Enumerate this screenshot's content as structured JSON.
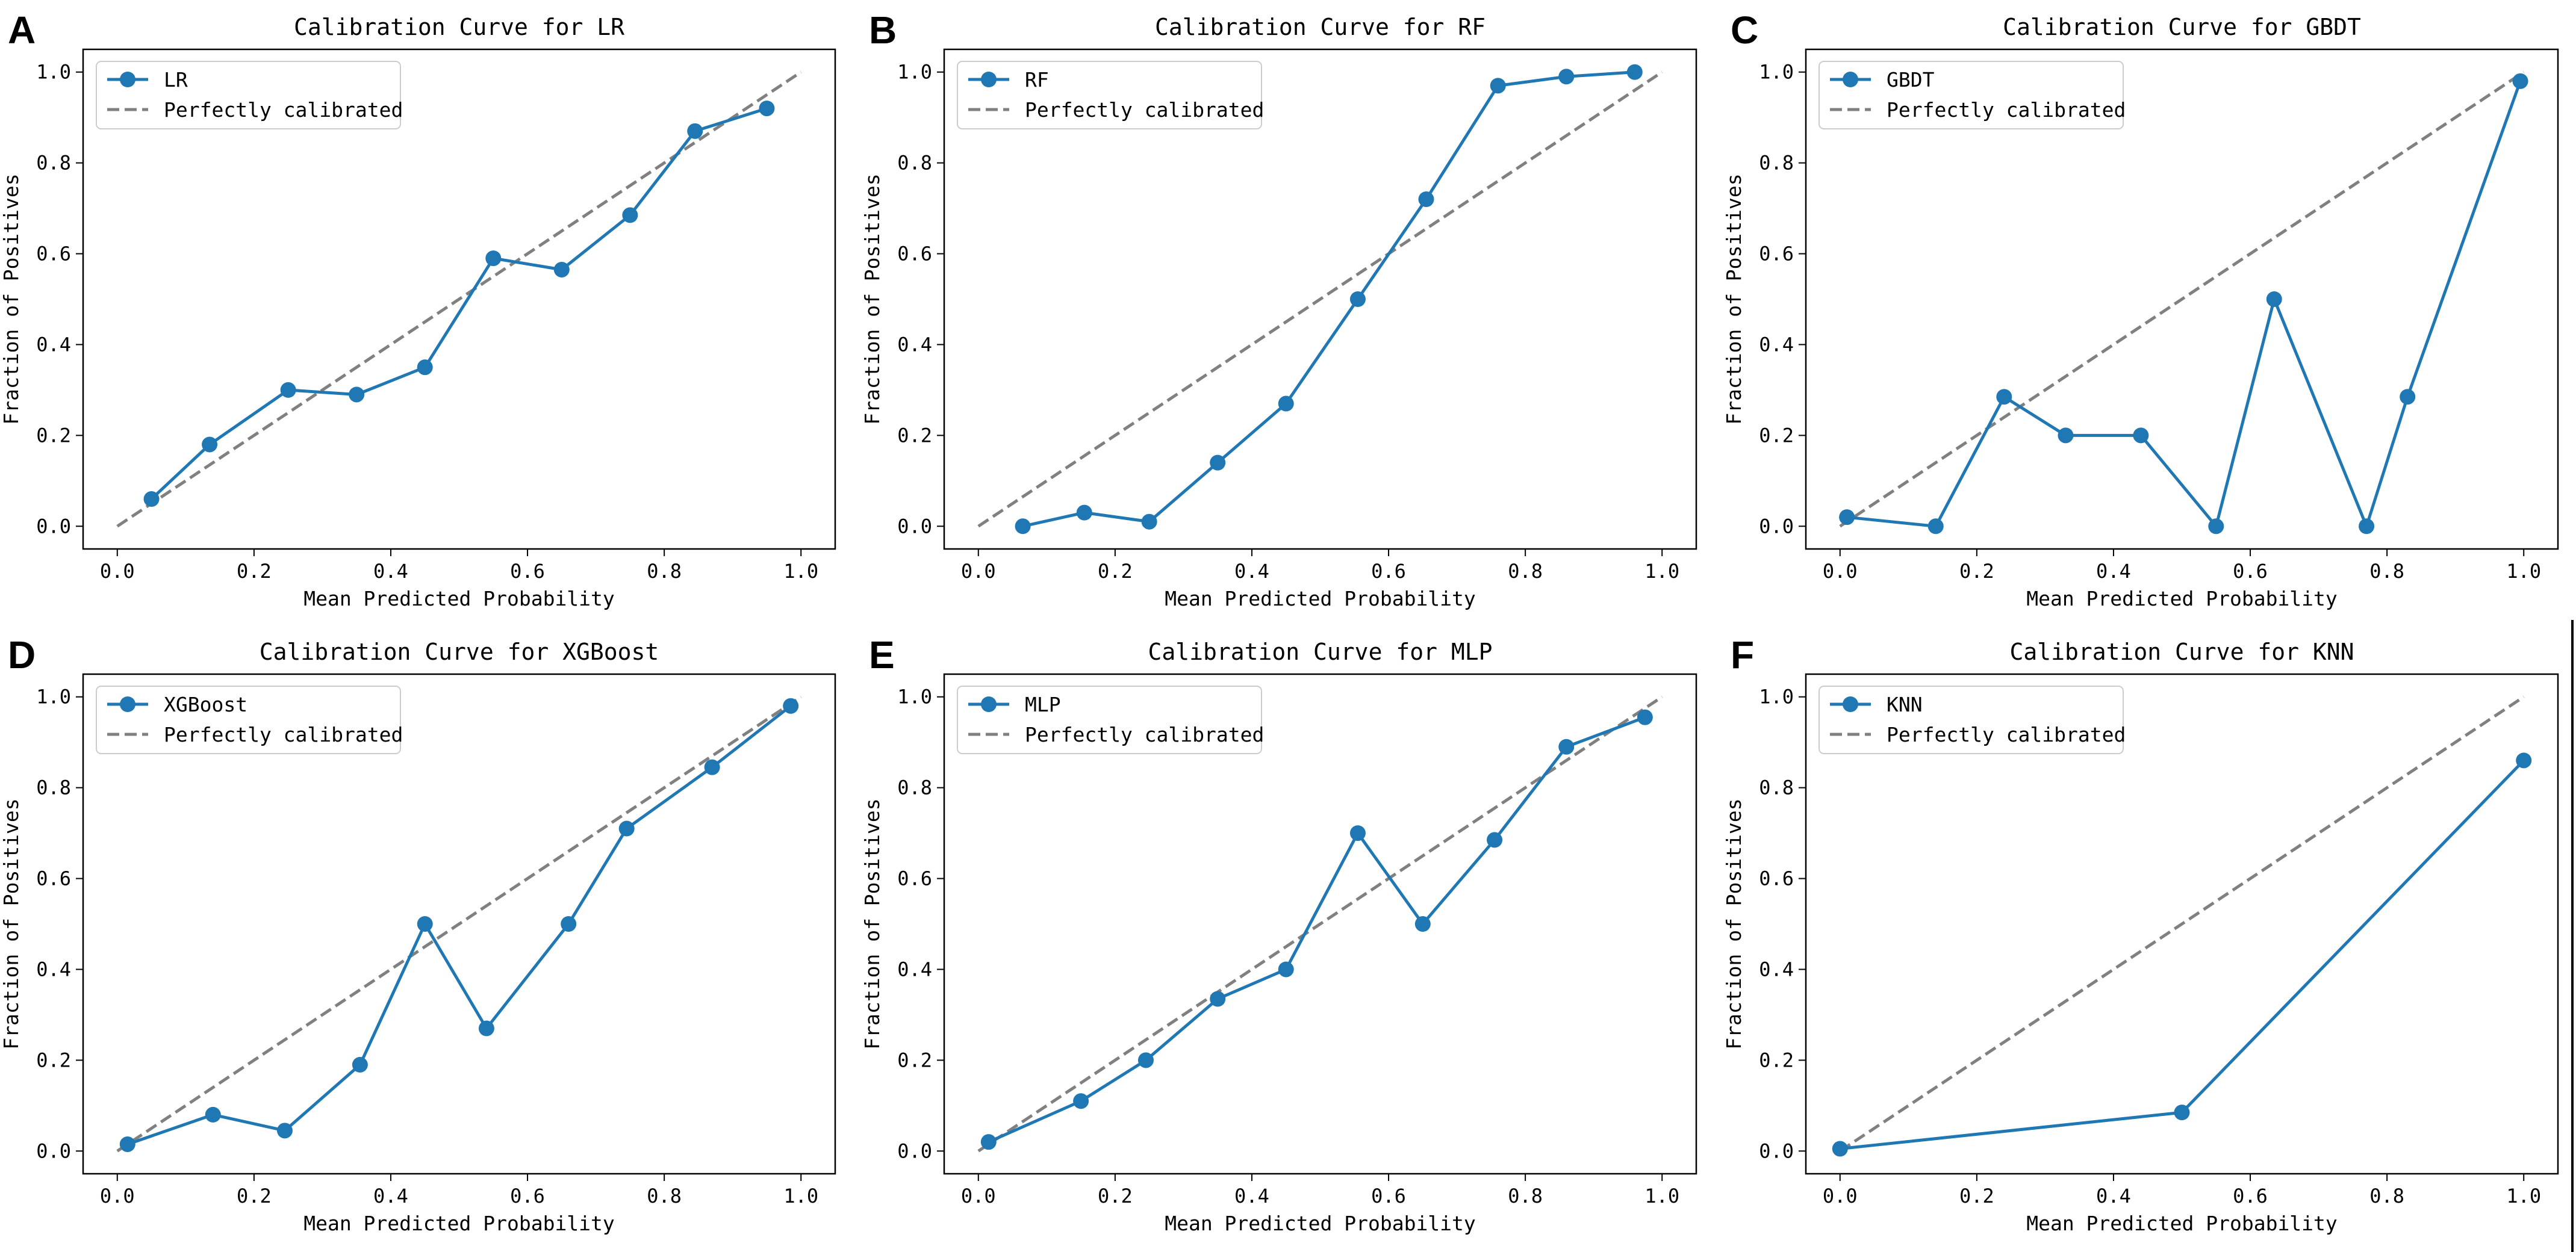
{
  "figure": {
    "colors": {
      "series": "#1f77b4",
      "reference": "#808080",
      "frame": "#000000",
      "legend_border": "#cccccc"
    },
    "reference_label": "Perfectly calibrated",
    "xlabel": "Mean Predicted Probability",
    "ylabel": "Fraction of Positives"
  },
  "chart_data": [
    {
      "letter": "A",
      "type": "line",
      "title": "Calibration Curve for LR",
      "legend_label": "LR",
      "xlim": [
        -0.05,
        1.05
      ],
      "ylim": [
        -0.05,
        1.05
      ],
      "xticks": [
        0.0,
        0.2,
        0.4,
        0.6,
        0.8,
        1.0
      ],
      "yticks": [
        0.0,
        0.2,
        0.4,
        0.6,
        0.8,
        1.0
      ],
      "xtick_labels": [
        "0.0",
        "0.2",
        "0.4",
        "0.6",
        "0.8",
        "1.0"
      ],
      "ytick_labels": [
        "0.0",
        "0.2",
        "0.4",
        "0.6",
        "0.8",
        "1.0"
      ],
      "x": [
        0.05,
        0.135,
        0.25,
        0.35,
        0.45,
        0.55,
        0.65,
        0.75,
        0.845,
        0.95
      ],
      "y": [
        0.06,
        0.18,
        0.3,
        0.29,
        0.35,
        0.59,
        0.565,
        0.685,
        0.87,
        0.92
      ],
      "reference": [
        [
          0,
          0
        ],
        [
          1,
          1
        ]
      ]
    },
    {
      "letter": "B",
      "type": "line",
      "title": "Calibration Curve for RF",
      "legend_label": "RF",
      "xlim": [
        -0.05,
        1.05
      ],
      "ylim": [
        -0.05,
        1.05
      ],
      "xticks": [
        0.0,
        0.2,
        0.4,
        0.6,
        0.8,
        1.0
      ],
      "yticks": [
        0.0,
        0.2,
        0.4,
        0.6,
        0.8,
        1.0
      ],
      "xtick_labels": [
        "0.0",
        "0.2",
        "0.4",
        "0.6",
        "0.8",
        "1.0"
      ],
      "ytick_labels": [
        "0.0",
        "0.2",
        "0.4",
        "0.6",
        "0.8",
        "1.0"
      ],
      "x": [
        0.065,
        0.155,
        0.25,
        0.35,
        0.45,
        0.555,
        0.655,
        0.76,
        0.86,
        0.96
      ],
      "y": [
        0.0,
        0.03,
        0.01,
        0.14,
        0.27,
        0.5,
        0.72,
        0.97,
        0.99,
        1.0
      ],
      "reference": [
        [
          0,
          0
        ],
        [
          1,
          1
        ]
      ]
    },
    {
      "letter": "C",
      "type": "line",
      "title": "Calibration Curve for GBDT",
      "legend_label": "GBDT",
      "xlim": [
        -0.05,
        1.05
      ],
      "ylim": [
        -0.05,
        1.05
      ],
      "xticks": [
        0.0,
        0.2,
        0.4,
        0.6,
        0.8,
        1.0
      ],
      "yticks": [
        0.0,
        0.2,
        0.4,
        0.6,
        0.8,
        1.0
      ],
      "xtick_labels": [
        "0.0",
        "0.2",
        "0.4",
        "0.6",
        "0.8",
        "1.0"
      ],
      "ytick_labels": [
        "0.0",
        "0.2",
        "0.4",
        "0.6",
        "0.8",
        "1.0"
      ],
      "x": [
        0.01,
        0.14,
        0.24,
        0.33,
        0.44,
        0.55,
        0.635,
        0.77,
        0.83,
        0.995
      ],
      "y": [
        0.02,
        0.0,
        0.285,
        0.2,
        0.2,
        0.0,
        0.5,
        0.0,
        0.285,
        0.98
      ],
      "reference": [
        [
          0,
          0
        ],
        [
          1,
          1
        ]
      ]
    },
    {
      "letter": "D",
      "type": "line",
      "title": "Calibration Curve for XGBoost",
      "legend_label": "XGBoost",
      "xlim": [
        -0.05,
        1.05
      ],
      "ylim": [
        -0.05,
        1.05
      ],
      "xticks": [
        0.0,
        0.2,
        0.4,
        0.6,
        0.8,
        1.0
      ],
      "yticks": [
        0.0,
        0.2,
        0.4,
        0.6,
        0.8,
        1.0
      ],
      "xtick_labels": [
        "0.0",
        "0.2",
        "0.4",
        "0.6",
        "0.8",
        "1.0"
      ],
      "ytick_labels": [
        "0.0",
        "0.2",
        "0.4",
        "0.6",
        "0.8",
        "1.0"
      ],
      "x": [
        0.015,
        0.14,
        0.245,
        0.355,
        0.45,
        0.54,
        0.66,
        0.745,
        0.87,
        0.985
      ],
      "y": [
        0.015,
        0.08,
        0.045,
        0.19,
        0.5,
        0.27,
        0.5,
        0.71,
        0.845,
        0.98
      ],
      "reference": [
        [
          0,
          0
        ],
        [
          1,
          1
        ]
      ]
    },
    {
      "letter": "E",
      "type": "line",
      "title": "Calibration Curve for MLP",
      "legend_label": "MLP",
      "xlim": [
        -0.05,
        1.05
      ],
      "ylim": [
        -0.05,
        1.05
      ],
      "xticks": [
        0.0,
        0.2,
        0.4,
        0.6,
        0.8,
        1.0
      ],
      "yticks": [
        0.0,
        0.2,
        0.4,
        0.6,
        0.8,
        1.0
      ],
      "xtick_labels": [
        "0.0",
        "0.2",
        "0.4",
        "0.6",
        "0.8",
        "1.0"
      ],
      "ytick_labels": [
        "0.0",
        "0.2",
        "0.4",
        "0.6",
        "0.8",
        "1.0"
      ],
      "x": [
        0.015,
        0.15,
        0.245,
        0.35,
        0.45,
        0.555,
        0.65,
        0.755,
        0.86,
        0.975
      ],
      "y": [
        0.02,
        0.11,
        0.2,
        0.335,
        0.4,
        0.7,
        0.5,
        0.685,
        0.89,
        0.955
      ],
      "reference": [
        [
          0,
          0
        ],
        [
          1,
          1
        ]
      ]
    },
    {
      "letter": "F",
      "type": "line",
      "title": "Calibration Curve for KNN",
      "legend_label": "KNN",
      "xlim": [
        -0.05,
        1.05
      ],
      "ylim": [
        -0.05,
        1.05
      ],
      "xticks": [
        0.0,
        0.2,
        0.4,
        0.6,
        0.8,
        1.0
      ],
      "yticks": [
        0.0,
        0.2,
        0.4,
        0.6,
        0.8,
        1.0
      ],
      "xtick_labels": [
        "0.0",
        "0.2",
        "0.4",
        "0.6",
        "0.8",
        "1.0"
      ],
      "ytick_labels": [
        "0.0",
        "0.2",
        "0.4",
        "0.6",
        "0.8",
        "1.0"
      ],
      "x": [
        0.0,
        0.5,
        1.0
      ],
      "y": [
        0.005,
        0.085,
        0.86
      ],
      "reference": [
        [
          0,
          0
        ],
        [
          1,
          1
        ]
      ]
    }
  ]
}
